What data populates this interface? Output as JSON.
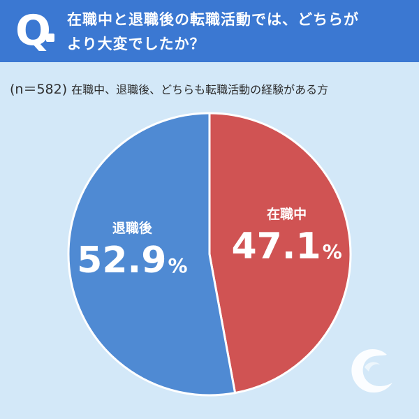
{
  "header": {
    "q_label": "Q",
    "question_line1": "在職中と退職後の転職活動では、どちらが",
    "question_line2": "より大変でしたか？"
  },
  "subheader": {
    "sample": "(n＝582)",
    "respondents": "在職中、退職後、どちらも転職活動の経験がある方"
  },
  "chart_data": {
    "type": "pie",
    "title": "在職中と退職後の転職活動では、どちらがより大変でしたか？",
    "n": 582,
    "unit": "%",
    "slices": [
      {
        "label": "在職中",
        "value": 47.1,
        "value_text": "47.1",
        "color": "#d05353"
      },
      {
        "label": "退職後",
        "value": 52.9,
        "value_text": "52.9",
        "color": "#4f8ad3"
      }
    ],
    "start": "12 o'clock",
    "direction": "clockwise"
  },
  "colors": {
    "background": "#d3e8f8",
    "header": "#3b78d2",
    "slice_border": "#ffffff"
  },
  "icons": {
    "logo": "c-swoosh-logo-icon"
  }
}
